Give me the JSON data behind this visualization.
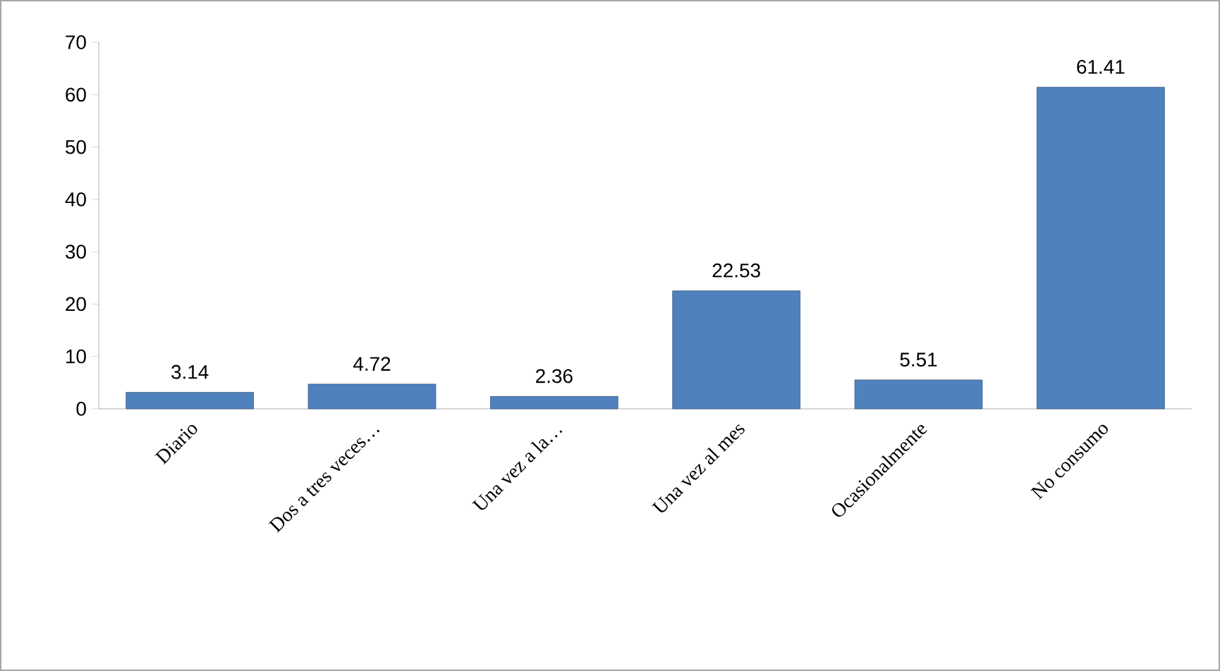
{
  "chart_data": {
    "type": "bar",
    "categories": [
      "Diario",
      "Dos a tres veces…",
      "Una vez a la…",
      "Una vez al mes",
      "Ocasionalmente",
      "No consumo"
    ],
    "values": [
      3.14,
      4.72,
      2.36,
      22.53,
      5.51,
      61.41
    ],
    "color": "#4f81bd",
    "ylim": [
      0,
      70
    ],
    "yticks": [
      0,
      10,
      20,
      30,
      40,
      50,
      60,
      70
    ],
    "data_labels": true
  }
}
